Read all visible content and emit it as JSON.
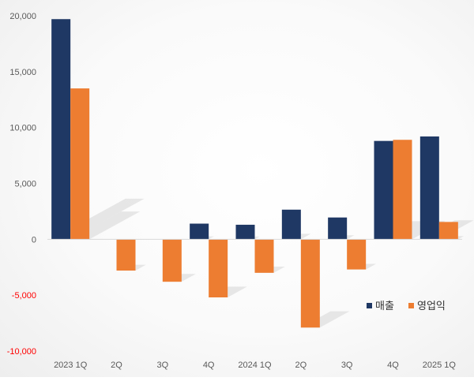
{
  "chart_data": {
    "type": "bar",
    "categories": [
      "2023 1Q",
      "2Q",
      "3Q",
      "4Q",
      "2024 1Q",
      "2Q",
      "3Q",
      "4Q",
      "2025 1Q"
    ],
    "series": [
      {
        "name": "매출",
        "color": "#1f3864",
        "values": [
          19700,
          0,
          0,
          1400,
          1300,
          2650,
          1950,
          8800,
          9200
        ]
      },
      {
        "name": "영업익",
        "color": "#ed7d31",
        "values": [
          13500,
          -2800,
          -3800,
          -5200,
          -3000,
          -7900,
          -2700,
          8900,
          1550
        ]
      }
    ],
    "ylim": [
      -10000,
      20000
    ],
    "yticks": [
      20000,
      15000,
      10000,
      5000,
      0,
      -5000,
      -10000
    ],
    "ytick_labels": [
      "20,000",
      "15,000",
      "10,000",
      "5,000",
      "0",
      "-5,000",
      "-10,000"
    ],
    "negative_tick_color": "#ff0000",
    "grid": false,
    "legend_position": "bottom-right"
  }
}
